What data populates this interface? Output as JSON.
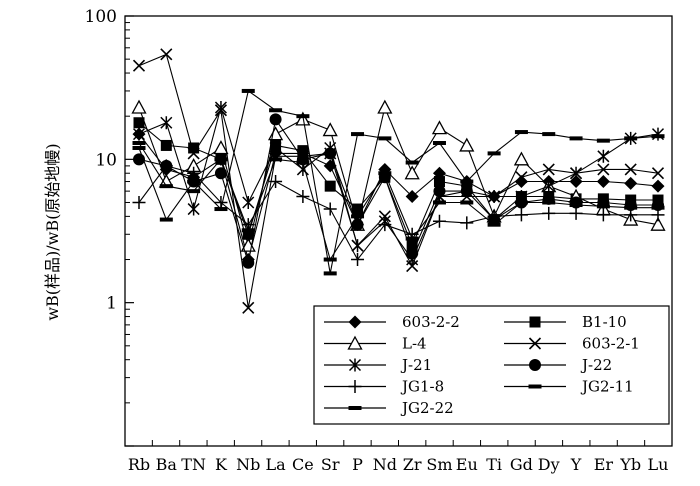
{
  "chart_data": {
    "type": "line",
    "title": "",
    "xlabel": "",
    "ylabel": "wB(样品)/wB(原始地幔)",
    "yscale": "log",
    "ylim": [
      0.1,
      100
    ],
    "y_tick_labels": [
      "1",
      "10",
      "100"
    ],
    "grid": false,
    "legend_placement": "bottom-right",
    "categories": [
      "Rb",
      "Ba",
      "TN",
      "K",
      "Nb",
      "La",
      "Ce",
      "Sr",
      "P",
      "Nd",
      "Zr",
      "Sm",
      "Eu",
      "Ti",
      "Gd",
      "Dy",
      "Y",
      "Er",
      "Yb",
      "Lu"
    ],
    "x_tick_labels": [
      "Rb",
      "Ba",
      "TN",
      "K",
      "Nb",
      "La",
      "Ce",
      "Sr",
      "P",
      "Nd",
      "Zr",
      "Sm",
      "Eu",
      "Ti",
      "Gd",
      "Dy",
      "Y",
      "Er",
      "Yb",
      "Lu"
    ],
    "series": [
      {
        "name": "603-2-2",
        "marker": "diamond",
        "values": [
          15,
          8.5,
          7.5,
          10,
          2,
          11,
          11,
          9,
          3.5,
          8.5,
          5.5,
          8,
          7,
          5.5,
          7,
          7,
          7,
          7,
          6.8,
          6.5
        ]
      },
      {
        "name": "B1-10",
        "marker": "square",
        "values": [
          18,
          12.5,
          12,
          10,
          3,
          12.5,
          11.5,
          6.5,
          4.5,
          7.5,
          2.5,
          7,
          6.5,
          3.8,
          5.5,
          5.5,
          5.3,
          5.3,
          5.2,
          5.2
        ]
      },
      {
        "name": "L-4",
        "marker": "triangle",
        "values": [
          23,
          7,
          9,
          12,
          2.5,
          15,
          19,
          16,
          3.5,
          23,
          8,
          16.5,
          12.5,
          4,
          10,
          6.5,
          5.5,
          4.5,
          3.8,
          3.5
        ]
      },
      {
        "name": "603-2-1",
        "marker": "x",
        "values": [
          45,
          54,
          11,
          22,
          0.92,
          10.5,
          10.5,
          11,
          2.5,
          4,
          1.8,
          5.5,
          5.5,
          5.5,
          7.5,
          8.5,
          8,
          8.5,
          8.5,
          8
        ]
      },
      {
        "name": "J-21",
        "marker": "star",
        "values": [
          15,
          18,
          4.5,
          23,
          5,
          12,
          8.5,
          12,
          2.5,
          3.7,
          2,
          5.5,
          6,
          5.5,
          5.5,
          6.5,
          8,
          10.5,
          14,
          15
        ]
      },
      {
        "name": "J-22",
        "marker": "circle",
        "values": [
          10,
          9,
          7,
          8,
          1.9,
          19,
          10,
          11,
          3.5,
          7.5,
          2.2,
          6,
          6,
          3.8,
          5,
          5.3,
          5,
          5,
          4.8,
          4.8
        ]
      },
      {
        "name": "JG1-8",
        "marker": "plus",
        "values": [
          5,
          9,
          8,
          5,
          3.5,
          7,
          5.5,
          4.5,
          2,
          3.5,
          3,
          3.7,
          3.6,
          4,
          4.1,
          4.2,
          4.2,
          4.1,
          4.1,
          4.1
        ]
      },
      {
        "name": "JG2-11",
        "marker": "dash",
        "values": [
          12,
          3.8,
          7,
          4.5,
          30,
          22,
          20,
          1.6,
          15,
          14,
          9.5,
          13,
          7,
          11,
          15.5,
          15,
          14,
          13.5,
          14,
          14.5
        ]
      },
      {
        "name": "JG2-22",
        "marker": "dash",
        "values": [
          13,
          6.5,
          6,
          10,
          3.2,
          10,
          9.5,
          2,
          4,
          8,
          2.8,
          5,
          5,
          3.5,
          5,
          5,
          4.8,
          4.7,
          4.6,
          4.6
        ]
      }
    ]
  }
}
